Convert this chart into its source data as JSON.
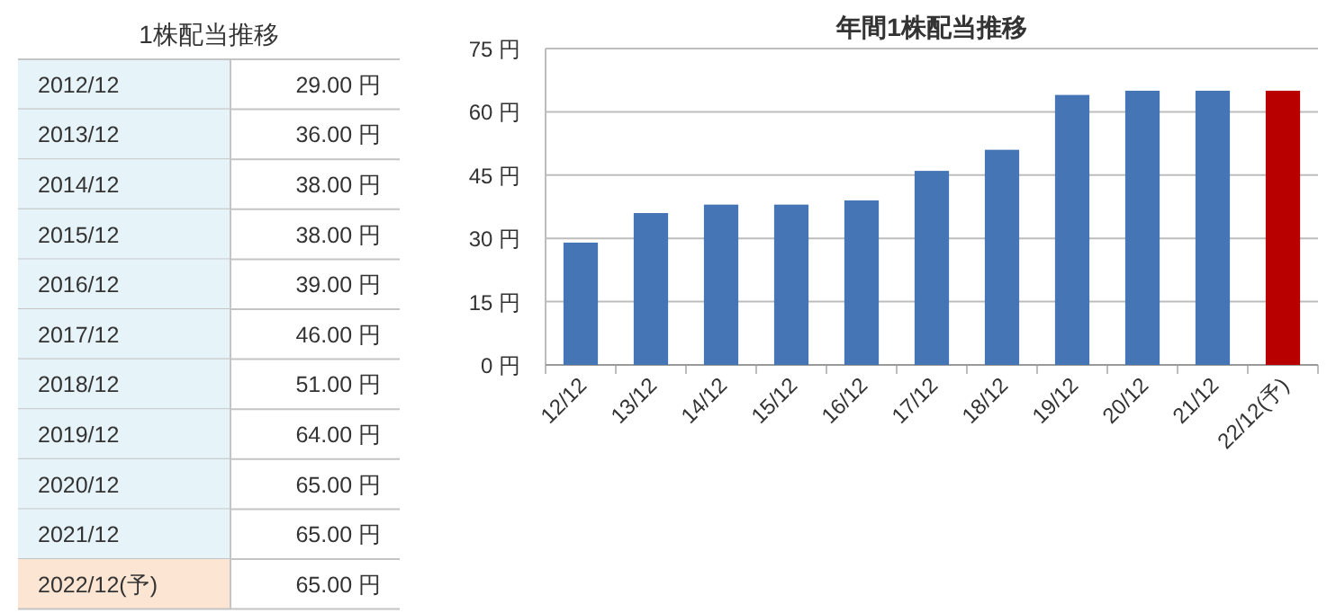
{
  "chart_data": [
    {
      "type": "other",
      "title": "1株配当推移",
      "categories": [
        "2012/12",
        "2013/12",
        "2014/12",
        "2015/12",
        "2016/12",
        "2017/12",
        "2018/12",
        "2019/12",
        "2020/12",
        "2021/12",
        "2022/12(予)"
      ],
      "value_labels": [
        "29.00 円",
        "36.00 円",
        "38.00 円",
        "38.00 円",
        "39.00 円",
        "46.00 円",
        "51.00 円",
        "64.00 円",
        "65.00 円",
        "65.00 円",
        "65.00 円"
      ],
      "colors": [
        "#e6f3f8",
        "#e6f3f8",
        "#e6f3f8",
        "#e6f3f8",
        "#e6f3f8",
        "#e6f3f8",
        "#e6f3f8",
        "#e6f3f8",
        "#e6f3f8",
        "#e6f3f8",
        "#fde5d3"
      ]
    },
    {
      "type": "bar",
      "title": "年間1株配当推移",
      "categories": [
        "12/12",
        "13/12",
        "14/12",
        "15/12",
        "16/12",
        "17/12",
        "18/12",
        "19/12",
        "20/12",
        "21/12",
        "22/12(予)"
      ],
      "values": [
        29,
        36,
        38,
        38,
        39,
        46,
        51,
        64,
        65,
        65,
        65
      ],
      "colors": [
        "#4575b5",
        "#4575b5",
        "#4575b5",
        "#4575b5",
        "#4575b5",
        "#4575b5",
        "#4575b5",
        "#4575b5",
        "#4575b5",
        "#4575b5",
        "#b80000"
      ],
      "ylim": [
        0,
        75
      ],
      "yticks": [
        {
          "value": 0,
          "label": "0 円"
        },
        {
          "value": 15,
          "label": "15 円"
        },
        {
          "value": 30,
          "label": "30 円"
        },
        {
          "value": 45,
          "label": "45 円"
        },
        {
          "value": 60,
          "label": "60 円"
        },
        {
          "value": 75,
          "label": "75 円"
        }
      ],
      "grid": "y"
    }
  ]
}
